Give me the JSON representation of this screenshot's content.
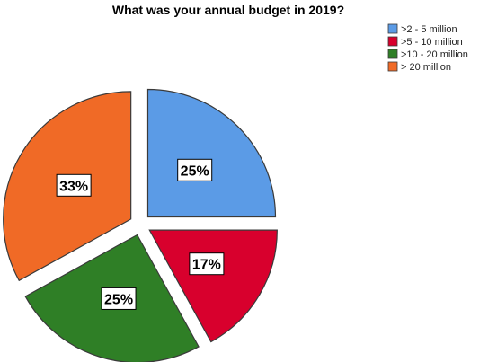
{
  "chart_data": {
    "type": "pie",
    "title": "What was your annual budget in 2019?",
    "categories": [
      ">2 - 5 million",
      ">5 - 10 million",
      ">10 - 20 million",
      "> 20 million"
    ],
    "values": [
      25,
      17,
      25,
      33
    ],
    "labels": [
      "25%",
      "17%",
      "25%",
      "33%"
    ],
    "colors": [
      "#5b9be6",
      "#d8002d",
      "#2f7f26",
      "#f06a26"
    ],
    "exploded": true,
    "legend_position": "top-right"
  }
}
